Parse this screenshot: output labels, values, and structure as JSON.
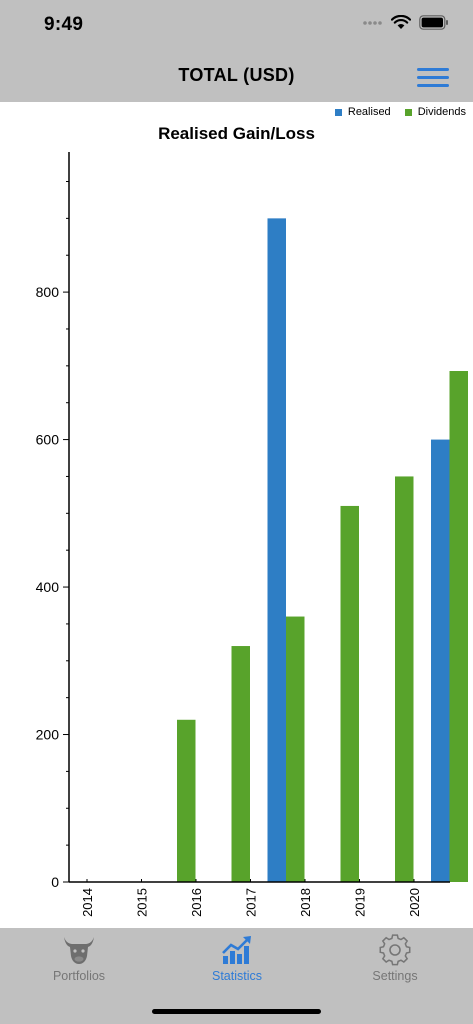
{
  "status_bar": {
    "time": "9:49"
  },
  "header": {
    "title": "TOTAL (USD)"
  },
  "tabs": [
    {
      "label": "Portfolios",
      "icon": "bull-icon",
      "active": false
    },
    {
      "label": "Statistics",
      "icon": "chart-icon",
      "active": true
    },
    {
      "label": "Settings",
      "icon": "gear-icon",
      "active": false
    }
  ],
  "colors": {
    "realised": "#2e7ec5",
    "dividends": "#58a32b",
    "bars_bg": "#c0c0c0",
    "accent": "#2e7bd6"
  },
  "chart_data": {
    "type": "bar",
    "title": "Realised Gain/Loss",
    "xlabel": "",
    "ylabel": "",
    "categories": [
      "2014",
      "2015",
      "2016",
      "2017",
      "2018",
      "2019",
      "2020"
    ],
    "series": [
      {
        "name": "Realised",
        "values": [
          0,
          0,
          0,
          900,
          0,
          0,
          600
        ]
      },
      {
        "name": "Dividends",
        "values": [
          0,
          220,
          320,
          360,
          510,
          550,
          693
        ]
      }
    ],
    "ylim": [
      0,
      990
    ],
    "yticks": [
      "0",
      "200",
      "400",
      "600",
      "800"
    ],
    "legend": "top-right",
    "grid": false
  }
}
